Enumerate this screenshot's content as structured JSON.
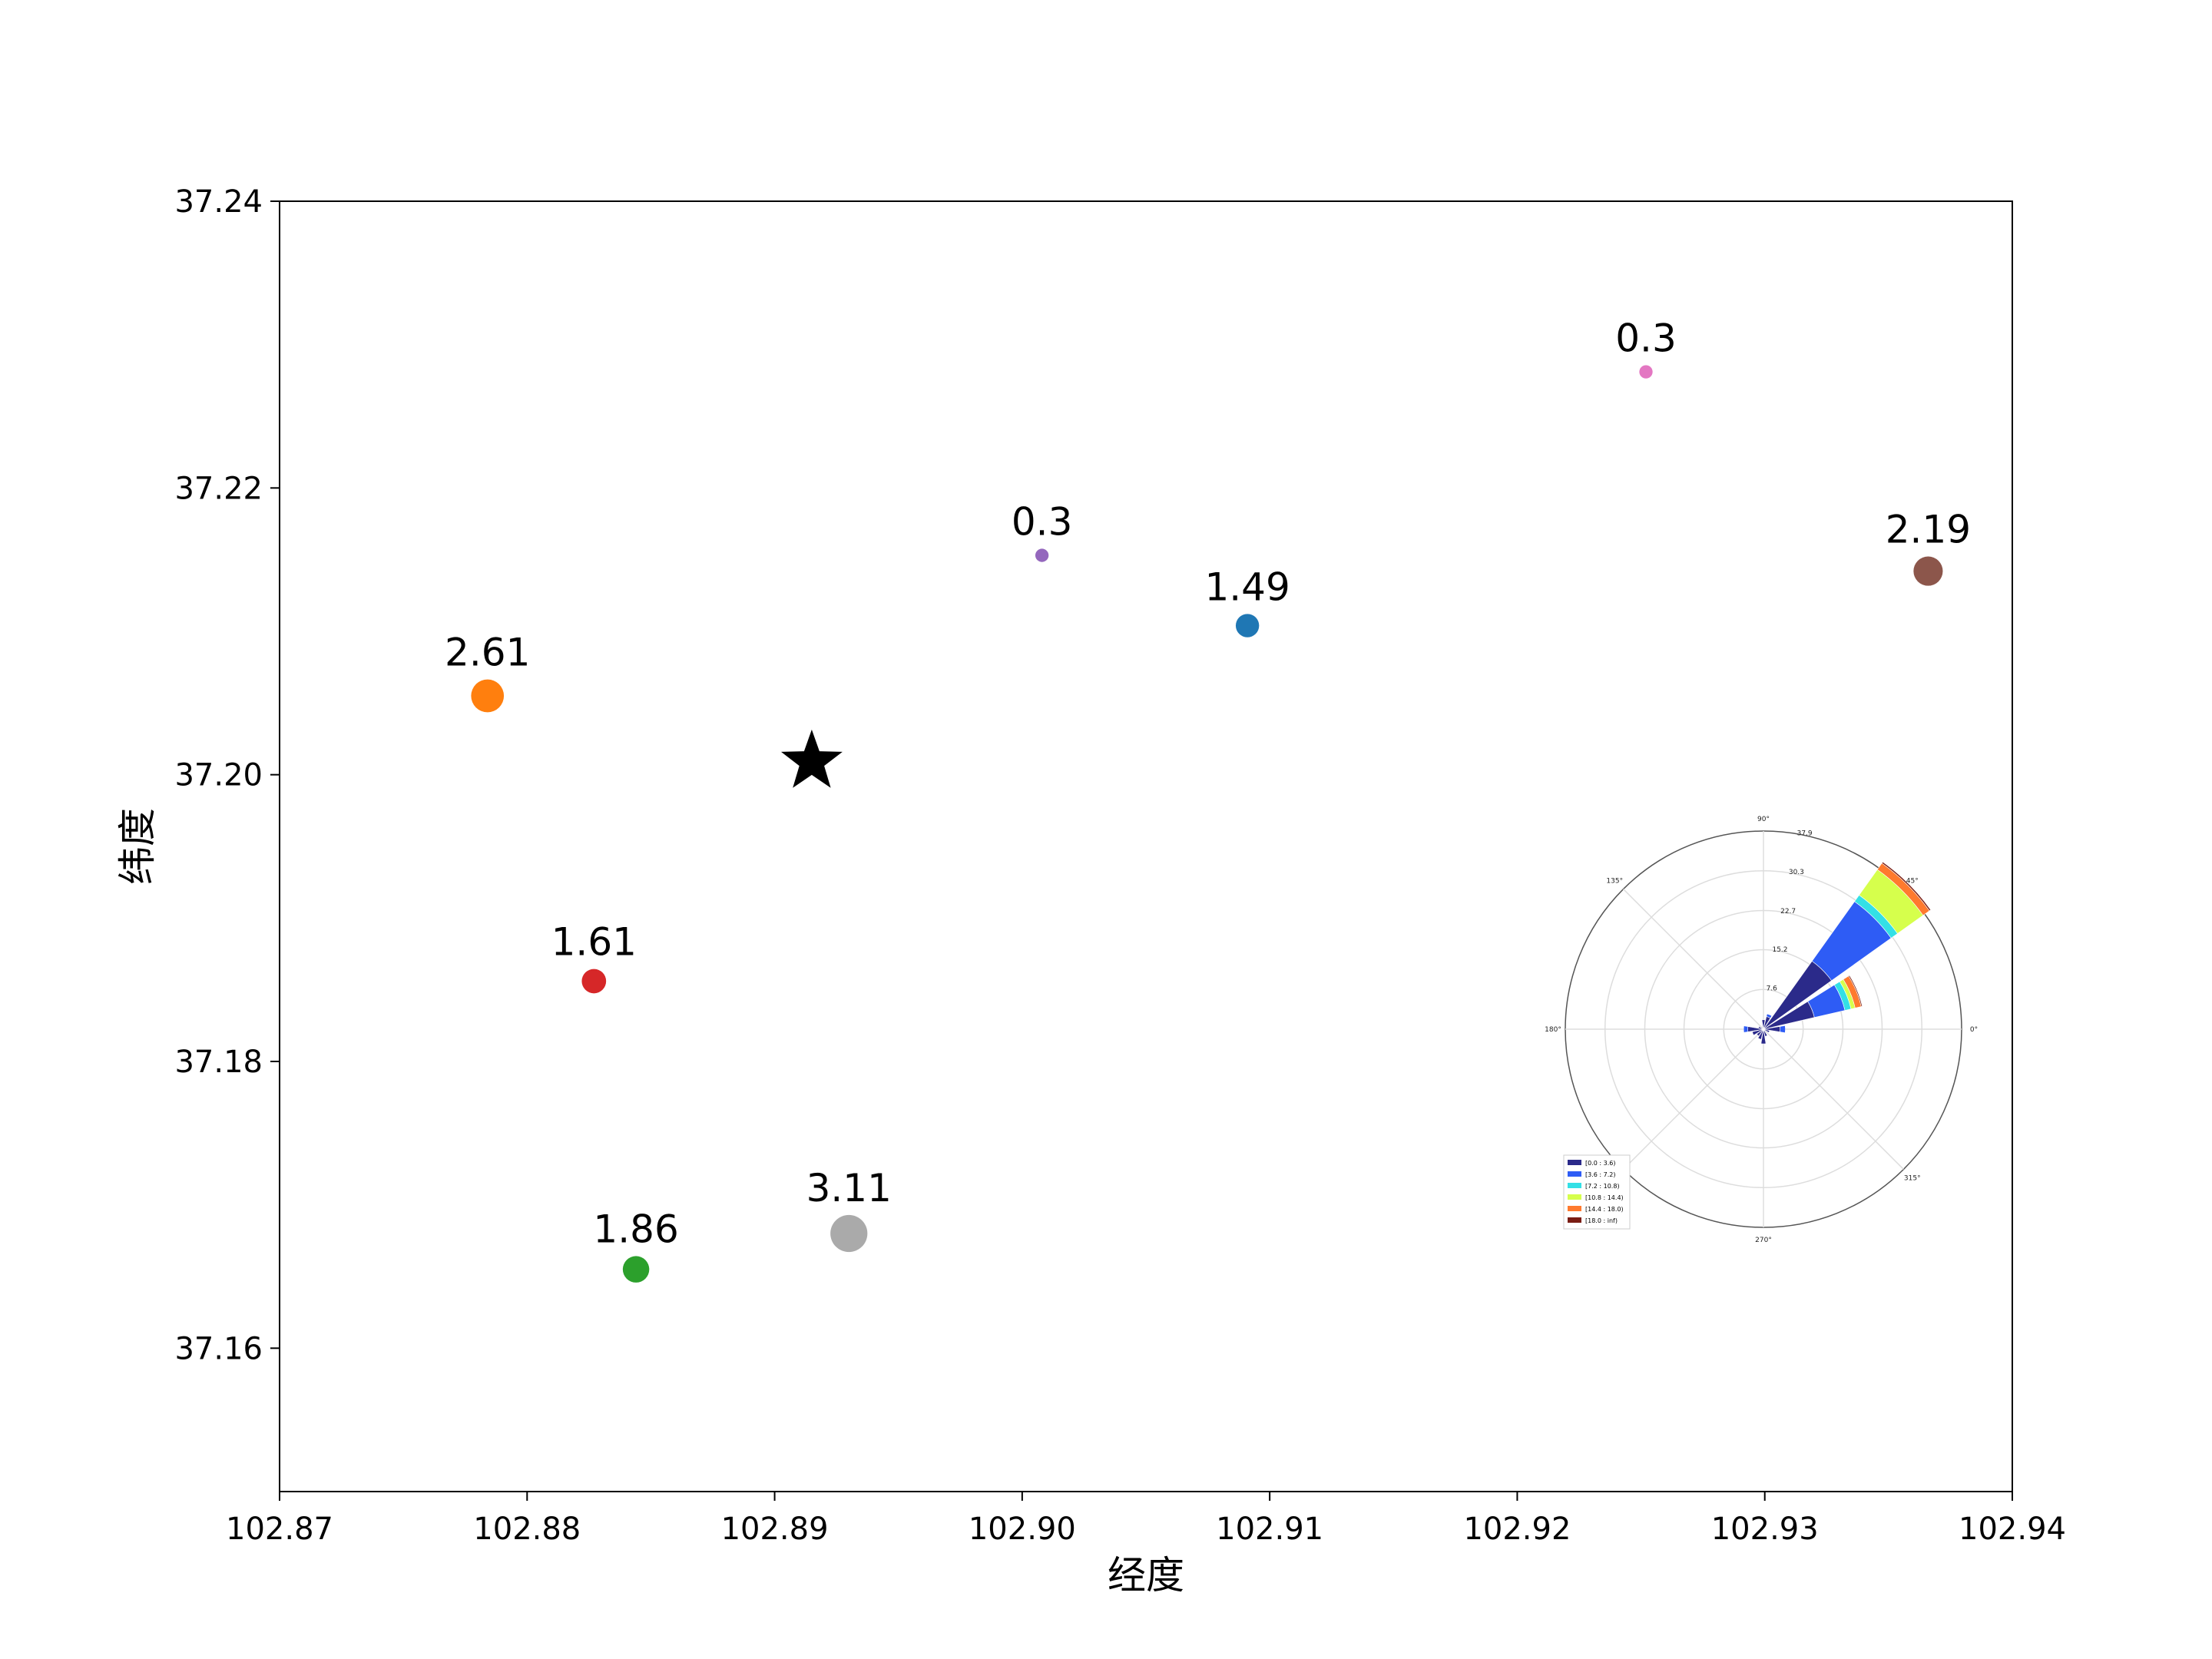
{
  "chart_data": [
    {
      "type": "scatter",
      "xlabel": "经度",
      "ylabel": "纬度",
      "xlim": [
        102.87,
        102.94
      ],
      "ylim": [
        37.15,
        37.24
      ],
      "xticks": [
        "102.87",
        "102.88",
        "102.89",
        "102.90",
        "102.91",
        "102.92",
        "102.93",
        "102.94"
      ],
      "yticks": [
        "37.16",
        "37.18",
        "37.20",
        "37.22",
        "37.24"
      ],
      "points": [
        {
          "x": 102.8784,
          "y": 37.2055,
          "label": "2.61",
          "color": "#ff7f0e",
          "value": 2.61
        },
        {
          "x": 102.8827,
          "y": 37.1856,
          "label": "1.61",
          "color": "#d62728",
          "value": 1.61
        },
        {
          "x": 102.8844,
          "y": 37.1655,
          "label": "1.86",
          "color": "#2ca02c",
          "value": 1.86
        },
        {
          "x": 102.893,
          "y": 37.168,
          "label": "3.11",
          "color": "#aaaaaa",
          "value": 3.11
        },
        {
          "x": 102.9008,
          "y": 37.2153,
          "label": "0.3",
          "color": "#9467bd",
          "value": 0.3
        },
        {
          "x": 102.9091,
          "y": 37.2104,
          "label": "1.49",
          "color": "#1f77b4",
          "value": 1.49
        },
        {
          "x": 102.9252,
          "y": 37.2281,
          "label": "0.3",
          "color": "#e377c2",
          "value": 0.3
        },
        {
          "x": 102.9366,
          "y": 37.2142,
          "label": "2.19",
          "color": "#8c564b",
          "value": 2.19
        }
      ],
      "source_marker": {
        "x": 102.8915,
        "y": 37.2009,
        "color": "#000000",
        "shape": "star"
      }
    },
    {
      "type": "windrose",
      "angle_labels": [
        "0°",
        "45°",
        "90°",
        "135°",
        "180°",
        "270°",
        "315°"
      ],
      "radial_ticks": [
        "7.6",
        "15.2",
        "22.7",
        "30.3",
        "37.9"
      ],
      "rmax": 37.9,
      "legend": [
        {
          "label": "[0.0 : 3.6)",
          "color": "#2b2a8a"
        },
        {
          "label": "[3.6 : 7.2)",
          "color": "#2e5cf5"
        },
        {
          "label": "[7.2 : 10.8)",
          "color": "#33e0e6"
        },
        {
          "label": "[10.8 : 14.4)",
          "color": "#d6ff4c"
        },
        {
          "label": "[14.4 : 18.0)",
          "color": "#ff7a2e"
        },
        {
          "label": "[18.0 : inf)",
          "color": "#7a1d14"
        }
      ],
      "directions": [
        {
          "angle": 45,
          "stack": [
            16,
            14,
            1.5,
            6,
            1.5,
            0.3
          ]
        },
        {
          "angle": 22.5,
          "stack": [
            10,
            6,
            1.2,
            0.8,
            1.2,
            0.2
          ]
        },
        {
          "angle": 0,
          "stack": [
            3.2,
            1.0,
            0,
            0,
            0,
            0
          ]
        },
        {
          "angle": 67.5,
          "stack": [
            2.5,
            0.5,
            0,
            0,
            0,
            0
          ]
        },
        {
          "angle": 90,
          "stack": [
            1.8,
            0,
            0,
            0,
            0,
            0
          ]
        },
        {
          "angle": 180,
          "stack": [
            3.0,
            0.8,
            0,
            0,
            0,
            0
          ]
        },
        {
          "angle": 202.5,
          "stack": [
            2.2,
            0,
            0,
            0,
            0,
            0
          ]
        },
        {
          "angle": 225,
          "stack": [
            1.6,
            0,
            0,
            0,
            0,
            0
          ]
        },
        {
          "angle": 247.5,
          "stack": [
            2.0,
            0,
            0,
            0,
            0,
            0
          ]
        },
        {
          "angle": 270,
          "stack": [
            2.8,
            0,
            0,
            0,
            0,
            0
          ]
        },
        {
          "angle": 292.5,
          "stack": [
            1.4,
            0,
            0,
            0,
            0,
            0
          ]
        },
        {
          "angle": 337.5,
          "stack": [
            1.2,
            0,
            0,
            0,
            0,
            0
          ]
        },
        {
          "angle": 157.5,
          "stack": [
            1.0,
            0,
            0,
            0,
            0,
            0
          ]
        }
      ]
    }
  ]
}
